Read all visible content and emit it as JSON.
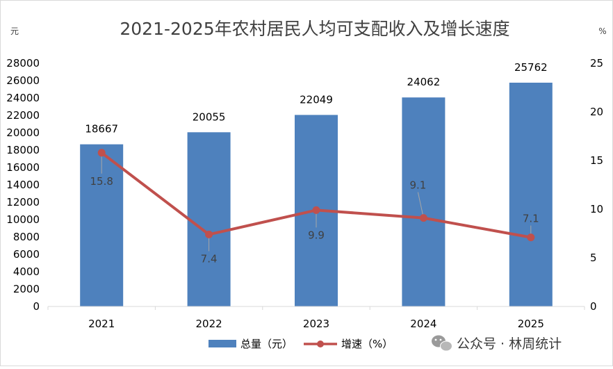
{
  "chart_data": {
    "type": "bar+line",
    "title": "2021-2025年农村居民人均可支配收入及增长速度",
    "left_unit": "元",
    "right_unit": "%",
    "categories": [
      "2021",
      "2022",
      "2023",
      "2024",
      "2025"
    ],
    "series": [
      {
        "name": "总量（元）",
        "type": "bar",
        "axis": "left",
        "color": "#4e81bd",
        "values": [
          18667,
          20055,
          22049,
          24062,
          25762
        ]
      },
      {
        "name": "增速（%）",
        "type": "line",
        "axis": "right",
        "color": "#c0504d",
        "values": [
          15.8,
          7.4,
          9.9,
          9.1,
          7.1
        ]
      }
    ],
    "y_left": {
      "min": 0,
      "max": 28000,
      "step": 2000
    },
    "y_right": {
      "min": 0,
      "max": 25,
      "step": 5
    },
    "grid": false,
    "legend_position": "bottom"
  },
  "watermark": {
    "text": "公众号 · 林周统计",
    "icon": "wechat-icon"
  }
}
